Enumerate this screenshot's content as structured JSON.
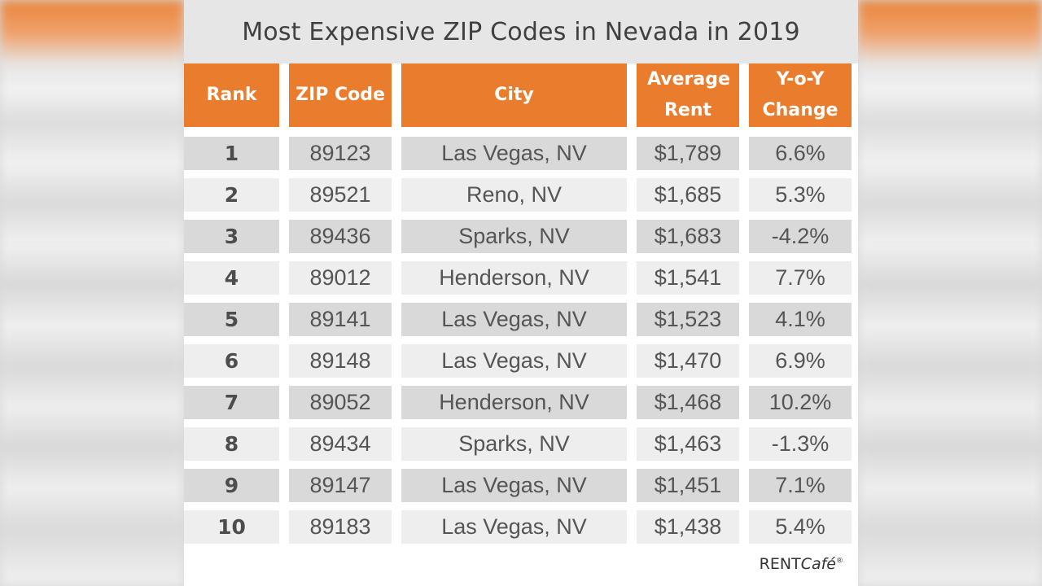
{
  "chart_data": {
    "type": "table",
    "title": "Most Expensive ZIP Codes in Nevada in 2019",
    "columns": [
      "Rank",
      "ZIP Code",
      "City",
      "Average Rent",
      "Y-o-Y Change"
    ],
    "rows": [
      {
        "rank": "1",
        "zip": "89123",
        "city": "Las Vegas, NV",
        "rent": "$1,789",
        "change": "6.6%"
      },
      {
        "rank": "2",
        "zip": "89521",
        "city": "Reno, NV",
        "rent": "$1,685",
        "change": "5.3%"
      },
      {
        "rank": "3",
        "zip": "89436",
        "city": "Sparks, NV",
        "rent": "$1,683",
        "change": "-4.2%"
      },
      {
        "rank": "4",
        "zip": "89012",
        "city": "Henderson, NV",
        "rent": "$1,541",
        "change": "7.7%"
      },
      {
        "rank": "5",
        "zip": "89141",
        "city": "Las Vegas, NV",
        "rent": "$1,523",
        "change": "4.1%"
      },
      {
        "rank": "6",
        "zip": "89148",
        "city": "Las Vegas, NV",
        "rent": "$1,470",
        "change": "6.9%"
      },
      {
        "rank": "7",
        "zip": "89052",
        "city": "Henderson, NV",
        "rent": "$1,468",
        "change": "10.2%"
      },
      {
        "rank": "8",
        "zip": "89434",
        "city": "Sparks, NV",
        "rent": "$1,463",
        "change": "-1.3%"
      },
      {
        "rank": "9",
        "zip": "89147",
        "city": "Las Vegas, NV",
        "rent": "$1,451",
        "change": "7.1%"
      },
      {
        "rank": "10",
        "zip": "89183",
        "city": "Las Vegas, NV",
        "rent": "$1,438",
        "change": "5.4%"
      }
    ]
  },
  "brand": {
    "rent": "RENT",
    "cafe": "Café",
    "reg": "®"
  },
  "colors": {
    "header": "#ea7c2d",
    "row_dark": "#d9d9d9",
    "row_light": "#eeeeee"
  }
}
